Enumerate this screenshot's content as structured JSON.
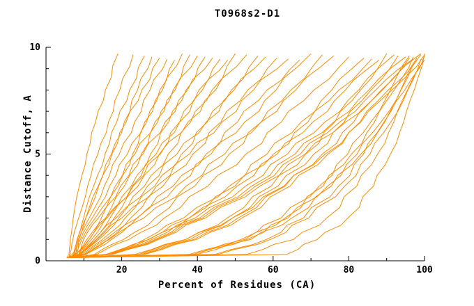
{
  "title": "T0968s2-D1",
  "chart_data": {
    "type": "line",
    "title": "T0968s2-D1",
    "xlabel": "Percent of Residues (CA)",
    "ylabel": "Distance Cutoff, A",
    "xlim": [
      0,
      100
    ],
    "ylim": [
      0,
      10
    ],
    "x_ticks": [
      20,
      40,
      60,
      80,
      100
    ],
    "x_tick_labels": [
      "20",
      "40",
      "60",
      "80",
      "100"
    ],
    "x_minor_ticks": [
      10,
      30,
      50,
      70,
      90
    ],
    "y_ticks": [
      0,
      5,
      10
    ],
    "y_tick_labels": [
      "0",
      "5",
      "10"
    ],
    "y_minor_ticks": [
      1,
      2,
      3,
      4,
      6,
      7,
      8,
      9
    ],
    "grid": false,
    "legend": "none",
    "line_color": "#ff8c00",
    "axis_color": "#000000",
    "y_levels": [
      0.15,
      0.3,
      1,
      2,
      3.5,
      5,
      6.5,
      8,
      9.7
    ],
    "series": [
      [
        5.5,
        6.1,
        6.4,
        7.2,
        8.8,
        10.8,
        13.1,
        15.7,
        19
      ],
      [
        6.0,
        6.3,
        7.1,
        8.6,
        11.0,
        13.7,
        16.5,
        19.5,
        23
      ],
      [
        6.5,
        7.3,
        8.2,
        9.9,
        12.6,
        15.6,
        18.7,
        22.1,
        26
      ],
      [
        7.0,
        7.4,
        8.3,
        10.5,
        13.9,
        17.3,
        20.7,
        24.2,
        28
      ],
      [
        7.5,
        7.9,
        8.5,
        10.5,
        13.8,
        17.4,
        21.2,
        25.3,
        30
      ],
      [
        8.0,
        8.3,
        8.7,
        11.4,
        15.4,
        19.4,
        23.4,
        27.5,
        32
      ],
      [
        5.5,
        8.7,
        11.4,
        14.6,
        19.0,
        22.9,
        26.6,
        30.1,
        34
      ],
      [
        6.0,
        6.9,
        9.1,
        12.2,
        16.8,
        21.5,
        26.1,
        30.8,
        36
      ],
      [
        6.5,
        8.9,
        12.0,
        15.8,
        20.7,
        25.2,
        29.5,
        33.6,
        38
      ],
      [
        7.0,
        7.6,
        9.5,
        13.0,
        18.3,
        23.5,
        28.8,
        34.1,
        40
      ],
      [
        7.5,
        9.2,
        12.7,
        16.9,
        22.5,
        27.6,
        32.4,
        37.0,
        42
      ],
      [
        8.0,
        8.6,
        9.9,
        13.8,
        19.7,
        25.6,
        31.5,
        37.4,
        44
      ],
      [
        5.5,
        9.4,
        13.3,
        18.0,
        24.3,
        29.9,
        35.3,
        40.4,
        46
      ],
      [
        6.0,
        7.8,
        11.4,
        16.1,
        22.8,
        29.1,
        35.3,
        41.3,
        48
      ],
      [
        6.5,
        9.7,
        14.0,
        19.2,
        26.0,
        32.3,
        38.2,
        43.9,
        50
      ],
      [
        7.0,
        7.9,
        10.8,
        15.7,
        23.0,
        30.2,
        37.5,
        44.8,
        53
      ],
      [
        7.5,
        10.1,
        14.9,
        20.9,
        28.7,
        35.8,
        42.6,
        49.0,
        56
      ],
      [
        8.0,
        8.9,
        12.7,
        18.5,
        26.8,
        34.6,
        42.3,
        49.7,
        58
      ],
      [
        5.5,
        10.4,
        15.7,
        22.3,
        30.9,
        38.8,
        46.2,
        53.3,
        61
      ],
      [
        6.0,
        8.6,
        13.5,
        20.0,
        29.2,
        37.9,
        46.5,
        54.8,
        64
      ],
      [
        6.5,
        10.7,
        16.7,
        24.0,
        33.6,
        42.3,
        50.6,
        58.4,
        67
      ],
      [
        7.0,
        10.0,
        16.4,
        24.1,
        34.4,
        43.6,
        52.5,
        60.8,
        70
      ],
      [
        7.5,
        12.8,
        20.5,
        28.8,
        39.3,
        48.4,
        56.9,
        64.7,
        73
      ],
      [
        8.0,
        10.4,
        17.3,
        25.8,
        37.0,
        47.2,
        56.8,
        66.0,
        76
      ],
      [
        5.5,
        13.4,
        21.9,
        31.2,
        42.8,
        52.8,
        62.2,
        70.8,
        80
      ],
      [
        6.0,
        15.8,
        26.0,
        36.3,
        48.4,
        58.4,
        67.4,
        75.5,
        84
      ],
      [
        6.5,
        16.9,
        27.2,
        37.7,
        49.9,
        60.1,
        69.2,
        77.4,
        86
      ],
      [
        7.0,
        16.3,
        27.0,
        37.8,
        50.5,
        61.1,
        70.5,
        79.1,
        88
      ],
      [
        7.5,
        24.4,
        36.9,
        47.8,
        59.5,
        68.6,
        76.3,
        83.1,
        90
      ],
      [
        8.0,
        16.8,
        28.0,
        39.4,
        52.7,
        63.8,
        73.7,
        82.6,
        92
      ],
      [
        5.5,
        25.1,
        38.0,
        49.2,
        61.3,
        70.8,
        78.8,
        85.9,
        93
      ],
      [
        6.0,
        17.1,
        28.8,
        40.5,
        54.3,
        65.8,
        76.0,
        85.3,
        95
      ],
      [
        6.5,
        25.7,
        39.0,
        50.7,
        63.2,
        73.0,
        81.3,
        88.6,
        96
      ],
      [
        7.0,
        17.4,
        29.3,
        41.3,
        55.4,
        67.2,
        77.6,
        87.1,
        97
      ],
      [
        7.5,
        26.1,
        39.8,
        51.7,
        64.5,
        74.5,
        83.0,
        90.4,
        98
      ],
      [
        8.0,
        17.6,
        29.8,
        42.1,
        56.5,
        68.5,
        79.2,
        88.9,
        99
      ],
      [
        5.5,
        23.4,
        36.9,
        49.2,
        62.9,
        73.8,
        83.2,
        91.4,
        100
      ],
      [
        6.0,
        37.8,
        51.5,
        62.1,
        72.2,
        79.7,
        85.8,
        91.0,
        96
      ],
      [
        6.5,
        38.8,
        52.5,
        63.1,
        73.2,
        80.7,
        86.8,
        92.0,
        97
      ],
      [
        7.0,
        44.6,
        58.2,
        68.0,
        77.3,
        83.9,
        89.3,
        93.7,
        98
      ],
      [
        7.5,
        53.0,
        65.4,
        74.1,
        82.1,
        87.6,
        91.9,
        95.5,
        99
      ],
      [
        8.0,
        45.5,
        59.3,
        69.4,
        78.9,
        85.6,
        91.1,
        95.6,
        100
      ],
      [
        5.5,
        63.6,
        71.7,
        79.7,
        86.5,
        91.0,
        94.5,
        97.3,
        100
      ],
      [
        6.0,
        38.8,
        53.1,
        63.9,
        74.4,
        82.2,
        88.5,
        93.8,
        99
      ],
      [
        6.5,
        39.8,
        54.1,
        64.9,
        75.4,
        83.2,
        89.5,
        94.8,
        100
      ]
    ]
  }
}
